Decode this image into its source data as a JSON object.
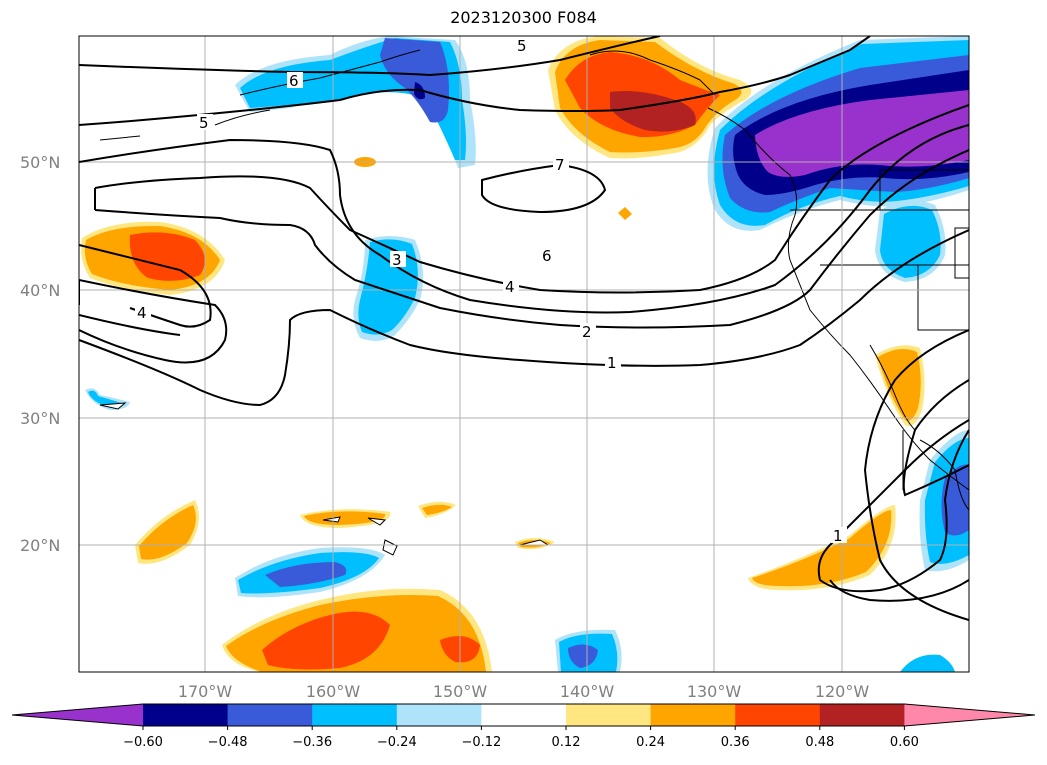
{
  "title": "2023120300 F084",
  "map": {
    "lat_labels": [
      "50°N",
      "40°N",
      "30°N",
      "20°N"
    ],
    "lon_labels": [
      "170°W",
      "160°W",
      "150°W",
      "140°W",
      "130°W",
      "120°W"
    ],
    "contour_labels": [
      "5",
      "6",
      "5",
      "7",
      "6",
      "4",
      "2",
      "1",
      "3",
      "4",
      "1"
    ]
  },
  "colorbar": {
    "ticks": [
      "−0.60",
      "−0.48",
      "−0.36",
      "−0.24",
      "−0.12",
      "0.12",
      "0.24",
      "0.36",
      "0.48",
      "0.60"
    ],
    "colors": [
      "#9932cc",
      "#00008b",
      "#3a5bd9",
      "#00bfff",
      "#afe3fa",
      "#ffffff",
      "#ffe680",
      "#ffa500",
      "#ff4500",
      "#b22222",
      "#ff88aa"
    ]
  }
}
